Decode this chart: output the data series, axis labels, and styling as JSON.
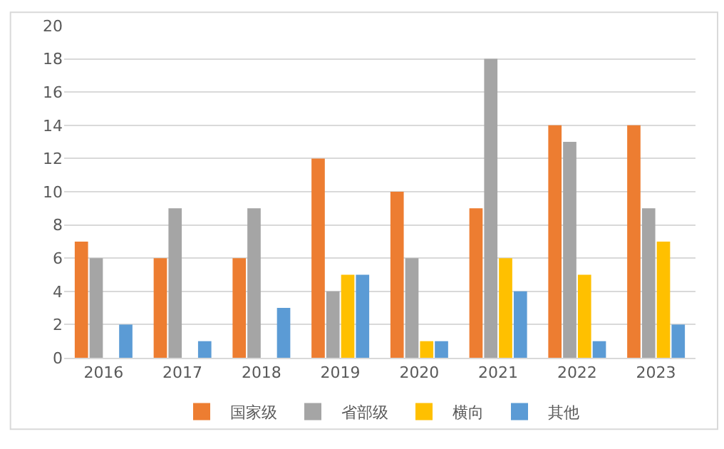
{
  "chart_data": {
    "type": "bar",
    "categories": [
      "2016",
      "2017",
      "2018",
      "2019",
      "2020",
      "2021",
      "2022",
      "2023"
    ],
    "series": [
      {
        "name": "国家级",
        "color": "#ed7d31",
        "values": [
          7,
          6,
          6,
          12,
          10,
          9,
          14,
          14
        ]
      },
      {
        "name": "省部级",
        "color": "#a5a5a5",
        "values": [
          6,
          9,
          9,
          4,
          6,
          18,
          13,
          9
        ]
      },
      {
        "name": "横向",
        "color": "#ffc000",
        "values": [
          0,
          0,
          0,
          5,
          1,
          6,
          5,
          7
        ]
      },
      {
        "name": "其他",
        "color": "#5b9bd5",
        "values": [
          2,
          1,
          3,
          5,
          1,
          4,
          1,
          2
        ]
      }
    ],
    "ylim": [
      0,
      20
    ],
    "yticks": [
      0,
      2,
      4,
      6,
      8,
      10,
      12,
      14,
      16,
      18,
      20
    ],
    "grid": "y",
    "legend": "bottom"
  }
}
